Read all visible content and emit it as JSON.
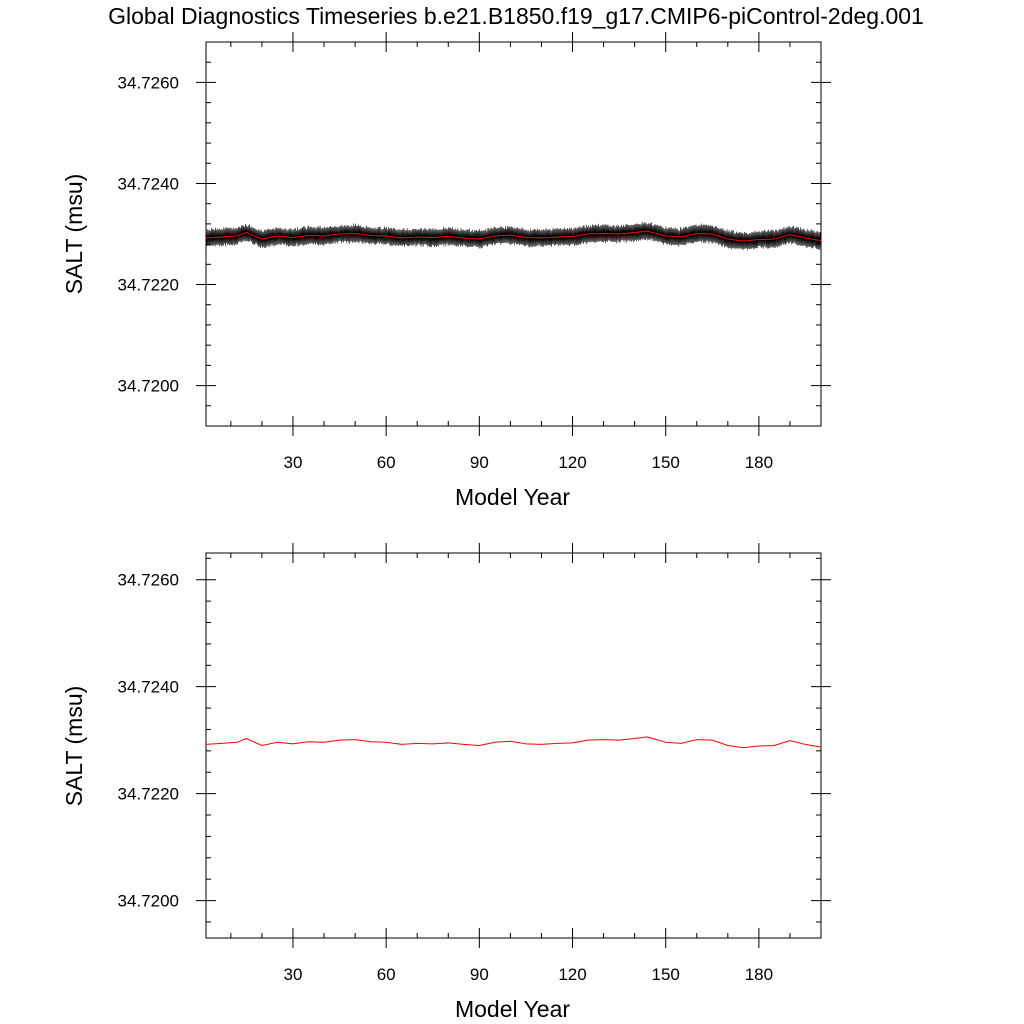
{
  "page_title": "Global Diagnostics Timeseries b.e21.B1850.f19_g17.CMIP6-piControl-2deg.001",
  "colors": {
    "monthly_line": "#000000",
    "annual_line": "#ff0000",
    "axes": "#000000"
  },
  "chart_data": [
    {
      "type": "line",
      "xlabel": "Model Year",
      "ylabel": "SALT (msu)",
      "xlim": [
        2,
        200
      ],
      "ylim": [
        34.7192,
        34.7268
      ],
      "xticks": [
        30,
        60,
        90,
        120,
        150,
        180
      ],
      "xtick_labels": [
        "30",
        "60",
        "90",
        "120",
        "150",
        "180"
      ],
      "yticks": [
        34.72,
        34.722,
        34.724,
        34.726
      ],
      "ytick_labels": [
        "34.7200",
        "34.7220",
        "34.7240",
        "34.7260"
      ],
      "series": [
        {
          "style": "monthly",
          "seasonal_amplitude": 0.00018,
          "x": [
            2,
            7,
            12,
            15,
            20,
            25,
            30,
            35,
            40,
            45,
            50,
            55,
            60,
            65,
            70,
            75,
            80,
            85,
            90,
            95,
            100,
            105,
            110,
            115,
            120,
            125,
            130,
            135,
            140,
            144,
            150,
            155,
            160,
            165,
            170,
            175,
            180,
            185,
            190,
            195,
            200
          ],
          "values": [
            34.72292,
            34.72294,
            34.72296,
            34.72303,
            34.7229,
            34.72296,
            34.72293,
            34.72297,
            34.72296,
            34.723,
            34.72301,
            34.72297,
            34.72296,
            34.72292,
            34.72294,
            34.72293,
            34.72295,
            34.72292,
            34.7229,
            34.72296,
            34.72298,
            34.72293,
            34.72292,
            34.72294,
            34.72295,
            34.723,
            34.72301,
            34.723,
            34.72303,
            34.72306,
            34.72296,
            34.72294,
            34.72301,
            34.723,
            34.7229,
            34.72286,
            34.72289,
            34.7229,
            34.72299,
            34.72292,
            34.72287
          ]
        },
        {
          "style": "annual",
          "x": [
            2,
            7,
            12,
            15,
            20,
            25,
            30,
            35,
            40,
            45,
            50,
            55,
            60,
            65,
            70,
            75,
            80,
            85,
            90,
            95,
            100,
            105,
            110,
            115,
            120,
            125,
            130,
            135,
            140,
            144,
            150,
            155,
            160,
            165,
            170,
            175,
            180,
            185,
            190,
            195,
            200
          ],
          "values": [
            34.72292,
            34.72294,
            34.72296,
            34.72303,
            34.7229,
            34.72296,
            34.72293,
            34.72297,
            34.72296,
            34.723,
            34.72301,
            34.72297,
            34.72296,
            34.72292,
            34.72294,
            34.72293,
            34.72295,
            34.72292,
            34.7229,
            34.72296,
            34.72298,
            34.72293,
            34.72292,
            34.72294,
            34.72295,
            34.723,
            34.72301,
            34.723,
            34.72303,
            34.72306,
            34.72296,
            34.72294,
            34.72301,
            34.723,
            34.7229,
            34.72286,
            34.72289,
            34.7229,
            34.72299,
            34.72292,
            34.72287
          ]
        }
      ]
    },
    {
      "type": "line",
      "xlabel": "Model Year",
      "ylabel": "SALT (msu)",
      "xlim": [
        2,
        200
      ],
      "ylim": [
        34.7193,
        34.7265
      ],
      "xticks": [
        30,
        60,
        90,
        120,
        150,
        180
      ],
      "xtick_labels": [
        "30",
        "60",
        "90",
        "120",
        "150",
        "180"
      ],
      "yticks": [
        34.72,
        34.722,
        34.724,
        34.726
      ],
      "ytick_labels": [
        "34.7200",
        "34.7220",
        "34.7240",
        "34.7260"
      ],
      "series": [
        {
          "style": "annual",
          "x": [
            2,
            7,
            12,
            15,
            20,
            25,
            30,
            35,
            40,
            45,
            50,
            55,
            60,
            65,
            70,
            75,
            80,
            85,
            90,
            95,
            100,
            105,
            110,
            115,
            120,
            125,
            130,
            135,
            140,
            144,
            150,
            155,
            160,
            165,
            170,
            175,
            180,
            185,
            190,
            195,
            200
          ],
          "values": [
            34.72292,
            34.72294,
            34.72296,
            34.72303,
            34.7229,
            34.72296,
            34.72293,
            34.72297,
            34.72296,
            34.723,
            34.72301,
            34.72297,
            34.72296,
            34.72292,
            34.72294,
            34.72293,
            34.72295,
            34.72292,
            34.7229,
            34.72296,
            34.72298,
            34.72293,
            34.72292,
            34.72294,
            34.72295,
            34.723,
            34.72301,
            34.723,
            34.72303,
            34.72306,
            34.72296,
            34.72294,
            34.72301,
            34.723,
            34.7229,
            34.72286,
            34.72289,
            34.7229,
            34.72299,
            34.72292,
            34.72287
          ]
        }
      ]
    }
  ]
}
